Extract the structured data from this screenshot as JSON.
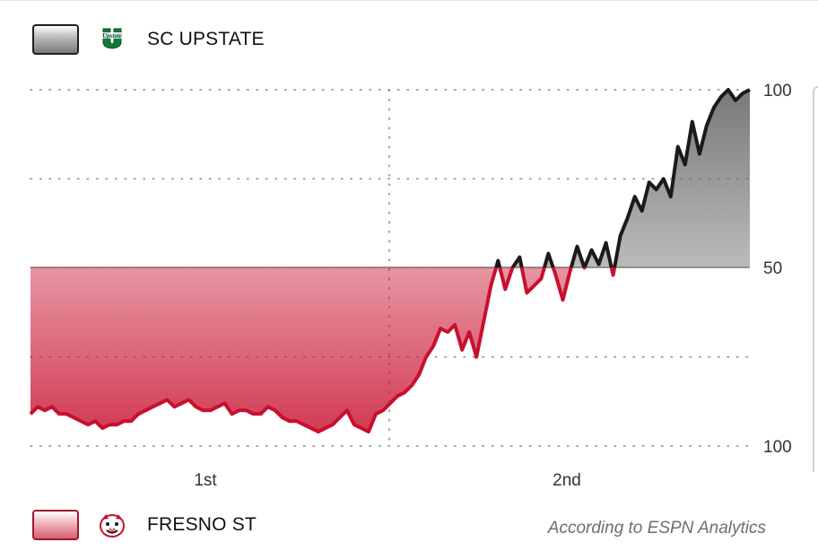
{
  "teams": {
    "top": {
      "name": "SC UPSTATE",
      "logo_icon": "sc-upstate-logo-icon",
      "color": "#1a1a1a"
    },
    "bottom": {
      "name": "FRESNO ST",
      "logo_icon": "fresno-state-bulldog-logo-icon",
      "color": "#c8102e"
    }
  },
  "credit": "According to ESPN Analytics",
  "chart_data": {
    "type": "line",
    "title": "",
    "xlabel": "",
    "ylabel": "",
    "x_ticks": [
      "1st",
      "2nd"
    ],
    "y_ticks": [
      "100",
      "50",
      "100"
    ],
    "ylim": [
      0,
      100
    ],
    "y_meaning": "SC Upstate win probability (%)",
    "grid": true,
    "series": [
      {
        "name": "",
        "x": [
          0,
          1,
          2,
          3,
          4,
          5,
          6,
          7,
          8,
          9,
          10,
          11,
          12,
          13,
          14,
          15,
          16,
          17,
          18,
          19,
          20,
          21,
          22,
          23,
          24,
          25,
          26,
          27,
          28,
          29,
          30,
          31,
          32,
          33,
          34,
          35,
          36,
          37,
          38,
          39,
          40,
          41,
          42,
          43,
          44,
          45,
          46,
          47,
          48,
          49,
          50,
          51,
          52,
          53,
          54,
          55,
          56,
          57,
          58,
          59,
          60,
          61,
          62,
          63,
          64,
          65,
          66,
          67,
          68,
          69,
          70,
          71,
          72,
          73,
          74,
          75,
          76,
          77,
          78,
          79,
          80,
          81,
          82,
          83,
          84,
          85,
          86,
          87,
          88,
          89,
          90,
          91,
          92,
          93,
          94,
          95,
          96,
          97,
          98,
          99,
          100
        ],
        "values": [
          9,
          11,
          10,
          11,
          9,
          9,
          8,
          7,
          6,
          7,
          5,
          6,
          6,
          7,
          7,
          9,
          10,
          11,
          12,
          13,
          11,
          12,
          13,
          11,
          10,
          10,
          11,
          12,
          9,
          10,
          10,
          9,
          9,
          11,
          10,
          8,
          7,
          7,
          6,
          5,
          4,
          5,
          6,
          8,
          10,
          6,
          5,
          4,
          9,
          10,
          12,
          14,
          15,
          17,
          20,
          25,
          28,
          33,
          32,
          34,
          27,
          32,
          25,
          35,
          45,
          52,
          44,
          50,
          53,
          43,
          45,
          47,
          54,
          48,
          41,
          49,
          56,
          50,
          55,
          51,
          57,
          48,
          59,
          64,
          70,
          66,
          74,
          72,
          75,
          70,
          84,
          79,
          91,
          82,
          90,
          95,
          98,
          100,
          97,
          99,
          100
        ]
      }
    ]
  }
}
